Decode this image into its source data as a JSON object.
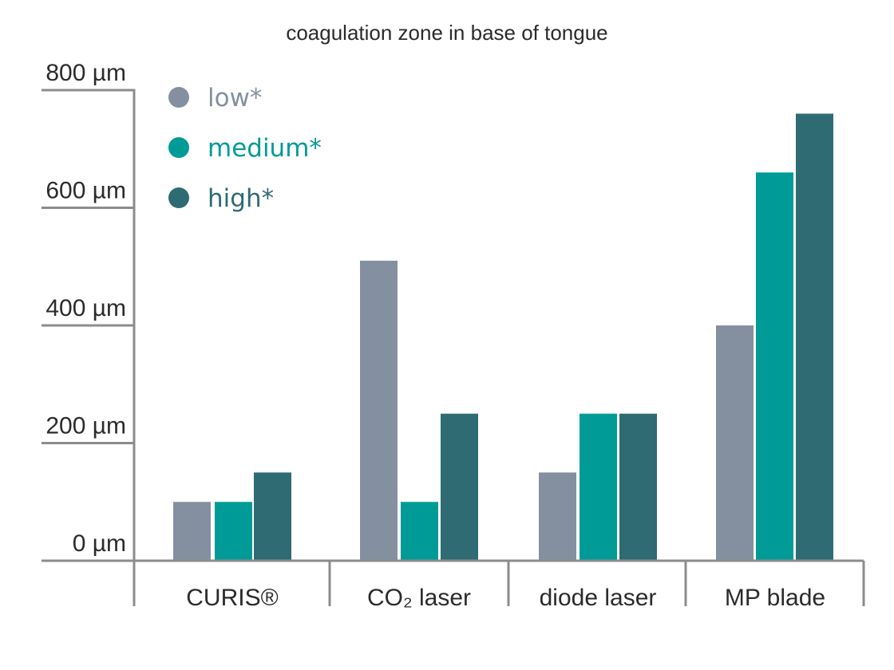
{
  "chart_data": {
    "type": "bar",
    "title": "coagulation zone in base of tongue",
    "xlabel": "",
    "ylabel": "",
    "ylim": [
      0,
      800
    ],
    "y_ticks": [
      "0 µm",
      "200 µm",
      "400 µm",
      "600 µm",
      "800 µm"
    ],
    "y_tick_values": [
      0,
      200,
      400,
      600,
      800
    ],
    "grid": false,
    "legend_position": "top-left",
    "categories": [
      "CURIS®",
      "CO₂ laser",
      "diode laser",
      "MP blade"
    ],
    "highlight_category_color": "#009b96",
    "series": [
      {
        "name": "low*",
        "color": "#8490a0",
        "values": [
          100,
          510,
          150,
          400
        ]
      },
      {
        "name": "medium*",
        "color": "#009b96",
        "values": [
          100,
          100,
          250,
          660
        ]
      },
      {
        "name": "high*",
        "color": "#2e6b72",
        "values": [
          150,
          250,
          250,
          760
        ]
      }
    ]
  }
}
